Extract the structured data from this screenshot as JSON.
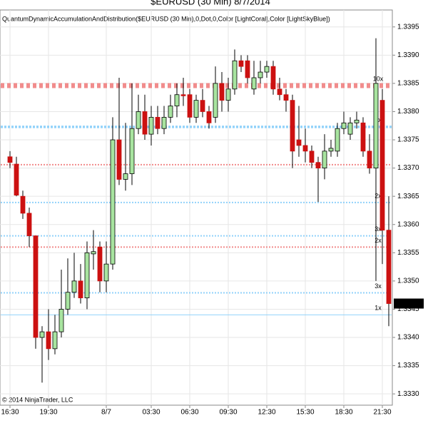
{
  "chart_data": {
    "type": "candlestick",
    "title": "$EURUSD (30 Min)  8/7/2014",
    "indicator": "QuantumDynamicAccumulationAndDistribution($EURUSD (30 Min),0,Dot,0,Color [LightCoral],Color [LightSkyBlue])",
    "copyright": "© 2014 NinjaTrader, LLC",
    "categories": [
      "16:30",
      null,
      null,
      null,
      null,
      null,
      "19:30",
      null,
      null,
      null,
      null,
      null,
      null,
      null,
      null,
      "8/7",
      null,
      null,
      null,
      null,
      null,
      null,
      "03:30",
      null,
      null,
      null,
      null,
      null,
      "06:30",
      null,
      null,
      null,
      null,
      null,
      "09:30",
      null,
      null,
      null,
      null,
      null,
      "12:30",
      null,
      null,
      null,
      null,
      null,
      "15:30",
      null,
      null,
      null,
      null,
      null,
      "18:30",
      null,
      null,
      null,
      null,
      null,
      "21:30",
      null
    ],
    "open": [
      1.3372,
      1.33707,
      1.3365,
      1.3362,
      1.3358,
      1.334,
      1.3341,
      1.3338,
      1.3341,
      1.3345,
      1.3348,
      1.335,
      1.3347,
      1.33548,
      1.3356,
      1.335,
      1.3353,
      1.3375,
      1.3368,
      1.3369,
      1.3377,
      1.338,
      1.3376,
      1.3379,
      1.3377,
      1.3379,
      1.3381,
      1.3383,
      1.3383,
      1.3379,
      1.3382,
      1.338,
      1.3379,
      1.3385,
      1.3382,
      1.3384,
      1.3389,
      1.3389,
      1.3384,
      1.3386,
      1.3387,
      1.3388,
      1.3384,
      1.3383,
      1.3382,
      1.3375,
      1.3374,
      1.3373,
      1.3371,
      1.337,
      1.3373,
      1.3373,
      1.3377,
      1.3376,
      1.3378,
      1.3378,
      1.3373,
      1.337,
      1.3382,
      1.3359
    ],
    "high": [
      1.3373,
      1.3372,
      1.3366,
      1.3363,
      1.3358,
      1.3342,
      1.3345,
      1.3344,
      1.3352,
      1.3354,
      1.3355,
      1.3353,
      1.3357,
      1.3359,
      1.3357,
      1.3357,
      1.3379,
      1.3386,
      1.3378,
      1.3385,
      1.3383,
      1.3383,
      1.3381,
      1.3381,
      1.3381,
      1.3383,
      1.3385,
      1.3386,
      1.3384,
      1.3383,
      1.3384,
      1.3381,
      1.3388,
      1.3387,
      1.3386,
      1.3391,
      1.339,
      1.339,
      1.3389,
      1.3389,
      1.3389,
      1.3389,
      1.3386,
      1.3384,
      1.3383,
      1.3381,
      1.3377,
      1.3374,
      1.3372,
      1.3376,
      1.3375,
      1.3378,
      1.338,
      1.3379,
      1.338,
      1.3379,
      1.3376,
      1.3393,
      1.3384,
      1.3365
    ],
    "low": [
      1.337,
      1.3365,
      1.3361,
      1.3356,
      1.3338,
      1.3332,
      1.3336,
      1.3337,
      1.334,
      1.3344,
      1.3347,
      1.3346,
      1.3345,
      1.3352,
      1.3348,
      1.3348,
      1.3352,
      1.3367,
      1.3366,
      1.3367,
      1.3376,
      1.3375,
      1.3374,
      1.3376,
      1.3376,
      1.3378,
      1.3379,
      1.3381,
      1.3378,
      1.3378,
      1.3379,
      1.3377,
      1.3378,
      1.338,
      1.338,
      1.3383,
      1.3387,
      1.3385,
      1.3383,
      1.3385,
      1.3386,
      1.3383,
      1.3382,
      1.338,
      1.337,
      1.3372,
      1.3371,
      1.337,
      1.3364,
      1.3368,
      1.3372,
      1.3372,
      1.3376,
      1.3375,
      1.3377,
      1.3372,
      1.3369,
      1.335,
      1.3353,
      1.3342
    ],
    "close": [
      1.3371,
      1.33652,
      1.3362,
      1.3358,
      1.334,
      1.3341,
      1.3338,
      1.3341,
      1.3345,
      1.3348,
      1.335,
      1.3347,
      1.3355,
      1.33552,
      1.335,
      1.3353,
      1.3375,
      1.3368,
      1.3369,
      1.3377,
      1.338,
      1.3376,
      1.3379,
      1.3377,
      1.3379,
      1.3381,
      1.3383,
      1.33828,
      1.3379,
      1.3382,
      1.338,
      1.3378,
      1.3385,
      1.3382,
      1.3384,
      1.3389,
      1.3388,
      1.3386,
      1.3386,
      1.3387,
      1.3388,
      1.3384,
      1.3383,
      1.3382,
      1.3373,
      1.3374,
      1.3373,
      1.3371,
      1.337,
      1.3373,
      1.33735,
      1.3377,
      1.3378,
      1.3378,
      1.33785,
      1.3373,
      1.337,
      1.3385,
      1.3359,
      1.3346
    ],
    "up_color": "#a8e4a0",
    "down_color": "#cc1111",
    "outline_color": "#000000",
    "ylim": [
      1.3328,
      1.3398
    ],
    "yticks": [
      1.3395,
      {
        "value": 1.339,
        "label": "1.3390"
      },
      1.3385,
      {
        "value": 1.338,
        "label": "1.3380"
      },
      1.3375,
      {
        "value": 1.337,
        "label": "1.3370"
      },
      1.3365,
      {
        "value": 1.336,
        "label": "1.3360"
      },
      1.3355,
      {
        "value": 1.335,
        "label": "1.3350"
      },
      1.3345,
      {
        "value": 1.334,
        "label": "1.3340"
      },
      1.3335,
      {
        "value": 1.333,
        "label": "1.3330"
      }
    ],
    "grid": true,
    "last_price": {
      "value": 1.3346,
      "label": "1.3346"
    },
    "levels": [
      {
        "value": 1.33846,
        "label": "10x",
        "color": "#f08080",
        "style": "heavy"
      },
      {
        "value": 1.33773,
        "label": "5x",
        "color": "#87cefa",
        "style": "medium"
      },
      {
        "value": 1.33706,
        "label": null,
        "color": "#f08080",
        "style": "light"
      },
      {
        "value": 1.33639,
        "label": "2x",
        "color": "#87cefa",
        "style": "light"
      },
      {
        "value": 1.3358,
        "label": "3x",
        "color": "#87cefa",
        "style": "light"
      },
      {
        "value": 1.3356,
        "label": "2x",
        "color": "#f08080",
        "style": "light"
      },
      {
        "value": 1.33479,
        "label": "3x",
        "color": "#87cefa",
        "style": "light"
      },
      {
        "value": 1.3344,
        "label": "1x",
        "color": "#87cefa",
        "style": "thin"
      }
    ]
  }
}
